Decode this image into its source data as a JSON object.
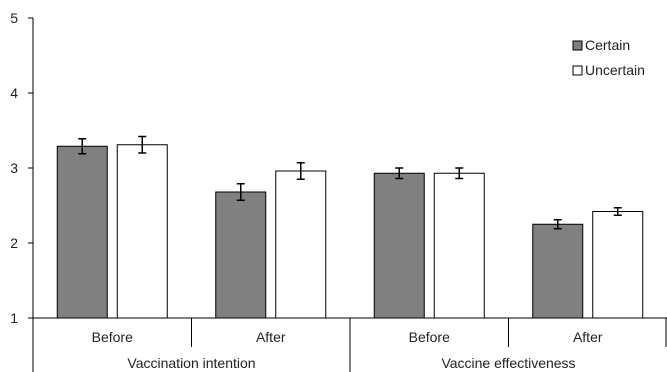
{
  "chart_data": {
    "type": "bar",
    "groups": [
      {
        "label": "Vaccination intention",
        "categories": [
          "Before",
          "After"
        ]
      },
      {
        "label": "Vaccine effectiveness",
        "categories": [
          "Before",
          "After"
        ]
      }
    ],
    "series": [
      {
        "name": "Certain",
        "values": [
          3.29,
          2.68,
          2.93,
          2.25
        ],
        "errors": [
          0.1,
          0.11,
          0.07,
          0.06
        ]
      },
      {
        "name": "Uncertain",
        "values": [
          3.31,
          2.96,
          2.93,
          2.42
        ],
        "errors": [
          0.11,
          0.11,
          0.07,
          0.05
        ]
      }
    ],
    "ylim": [
      1,
      5
    ],
    "yticks": [
      "1",
      "2",
      "3",
      "4",
      "5"
    ],
    "legend_position": "top-right",
    "colors": {
      "Certain": "#808080",
      "Uncertain": "#ffffff",
      "outline": "#000000"
    }
  }
}
